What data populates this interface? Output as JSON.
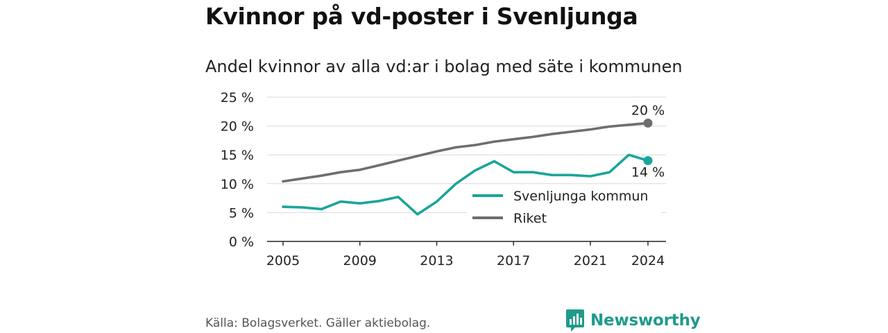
{
  "title": "Kvinnor på vd-poster i Svenljunga",
  "subtitle": "Andel kvinnor av alla vd:ar i bolag med säte i kommunen",
  "source": "Källa: Bolagsverket. Gäller aktiebolag.",
  "brand": {
    "name": "Newsworthy",
    "icon": "newsworthy-logo-icon"
  },
  "colors": {
    "teal": "#1aa59a",
    "gray": "#6e6e72",
    "grid": "#d9d9d9"
  },
  "chart_data": {
    "type": "line",
    "ylim": [
      0,
      25
    ],
    "xlim": [
      2005,
      2024
    ],
    "y_ticks": [
      {
        "value": 0,
        "label": "0 %"
      },
      {
        "value": 5,
        "label": "5 %"
      },
      {
        "value": 10,
        "label": "10 %"
      },
      {
        "value": 15,
        "label": "15 %"
      },
      {
        "value": 20,
        "label": "20 %"
      },
      {
        "value": 25,
        "label": "25 %"
      }
    ],
    "x_ticks": [
      {
        "value": 2005,
        "label": "2005"
      },
      {
        "value": 2009,
        "label": "2009"
      },
      {
        "value": 2013,
        "label": "2013"
      },
      {
        "value": 2017,
        "label": "2017"
      },
      {
        "value": 2021,
        "label": "2021"
      },
      {
        "value": 2024,
        "label": "2024"
      }
    ],
    "x": [
      2005,
      2006,
      2007,
      2008,
      2009,
      2010,
      2011,
      2012,
      2013,
      2014,
      2015,
      2016,
      2017,
      2018,
      2019,
      2020,
      2021,
      2022,
      2023,
      2024
    ],
    "series": [
      {
        "name": "Svenljunga kommun",
        "color": "#1aa59a",
        "values": [
          6.0,
          5.9,
          5.6,
          6.9,
          6.6,
          7.0,
          7.7,
          4.7,
          6.9,
          10.0,
          12.3,
          13.9,
          12.0,
          12.0,
          11.5,
          11.5,
          11.3,
          12.0,
          15.0,
          14.0
        ],
        "end_label": "14 %"
      },
      {
        "name": "Riket",
        "color": "#6e6e72",
        "values": [
          10.4,
          10.9,
          11.4,
          12.0,
          12.4,
          13.2,
          14.0,
          14.8,
          15.6,
          16.3,
          16.7,
          17.3,
          17.7,
          18.1,
          18.6,
          19.0,
          19.4,
          19.9,
          20.2,
          20.5
        ],
        "end_label": "20 %"
      }
    ],
    "legend_position": "center-right",
    "grid": true
  }
}
